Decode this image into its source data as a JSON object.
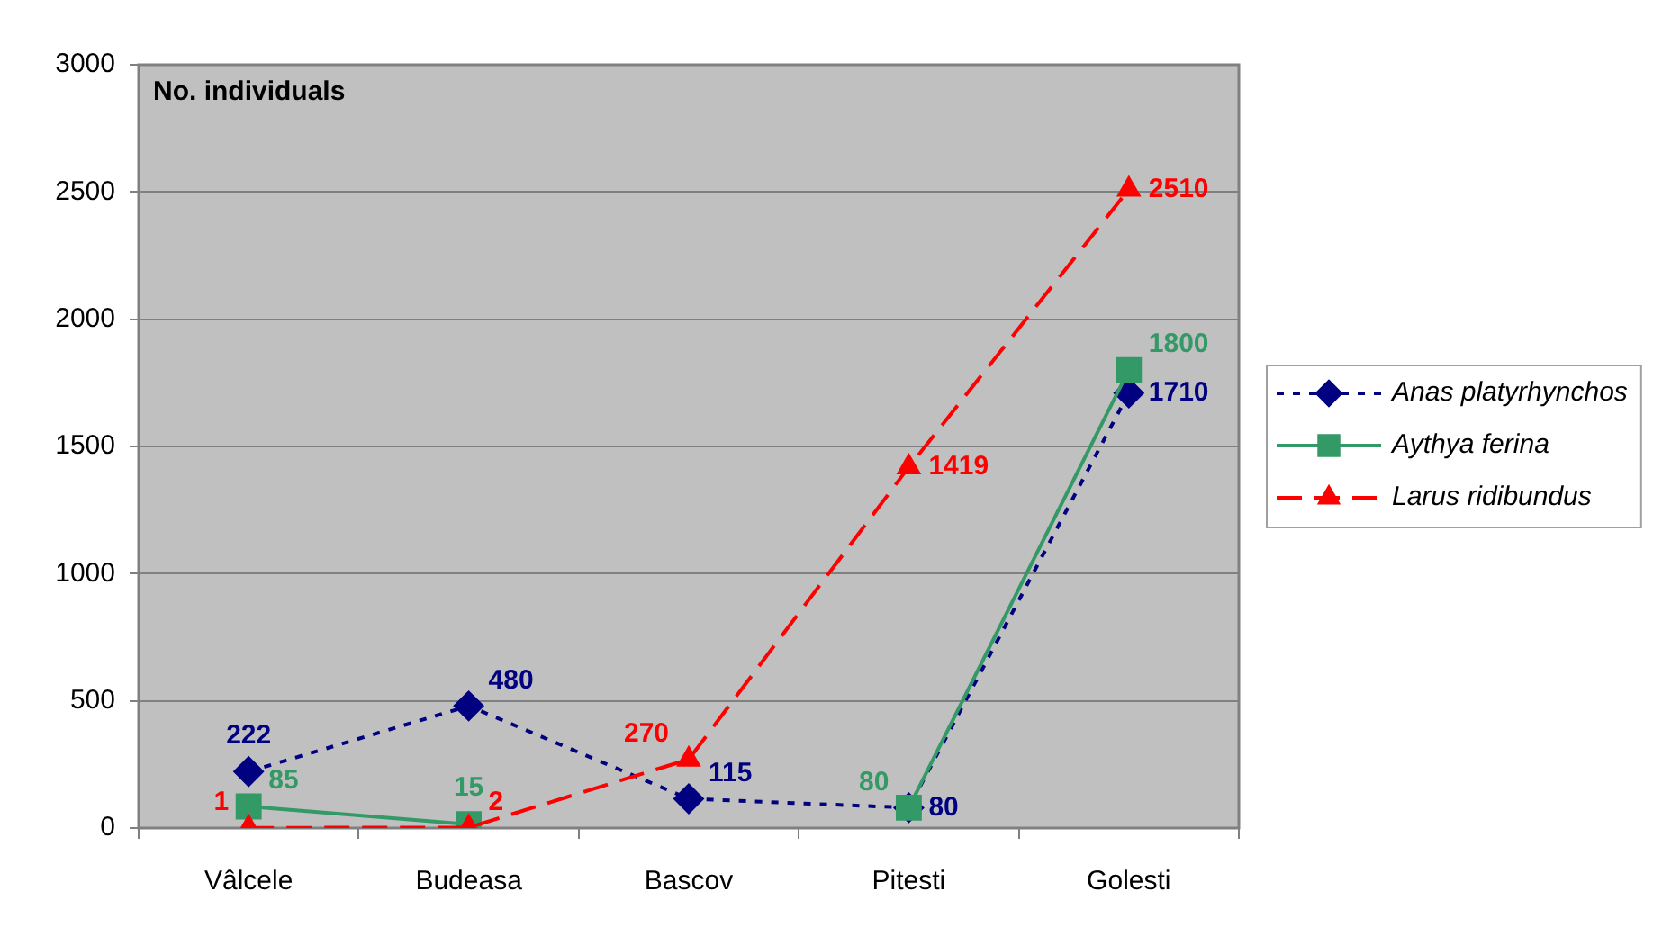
{
  "chart_data": {
    "type": "line",
    "ylabel": "No. individuals",
    "categories": [
      "Vâlcele",
      "Budeasa",
      "Bascov",
      "Pitesti",
      "Golesti"
    ],
    "series": [
      {
        "name": "Anas platyrhynchos",
        "color": "#000080",
        "values": [
          222,
          480,
          115,
          80,
          1710
        ],
        "marker": "diamond",
        "line_style": "dotted"
      },
      {
        "name": "Aythya ferina",
        "color": "#339966",
        "values": [
          85,
          15,
          null,
          80,
          1800
        ],
        "marker": "square",
        "line_style": "solid"
      },
      {
        "name": "Larus ridibundus",
        "color": "#ff0000",
        "values": [
          1,
          2,
          270,
          1419,
          2510
        ],
        "marker": "triangle",
        "line_style": "dashed"
      }
    ],
    "ylim": [
      0,
      3000
    ],
    "yticks": [
      0,
      500,
      1000,
      1500,
      2000,
      2500,
      3000
    ],
    "grid": "y",
    "legend": "right",
    "data_labels": true
  }
}
